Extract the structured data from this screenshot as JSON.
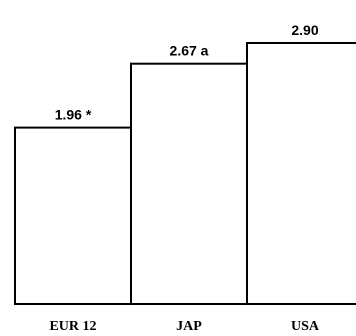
{
  "chart_data": {
    "type": "bar",
    "title": "",
    "xlabel": "",
    "ylabel": "",
    "categories": [
      "EUR 12",
      "JAP",
      "USA"
    ],
    "values": [
      1.96,
      2.67,
      2.9
    ],
    "data_labels": [
      "1.96 *",
      "2.67 a",
      "2.90"
    ],
    "ylim": [
      0,
      3.0
    ],
    "grid": false,
    "legend": "none",
    "colors": {
      "bar_fill": "#ffffff",
      "bar_stroke": "#000000"
    }
  }
}
